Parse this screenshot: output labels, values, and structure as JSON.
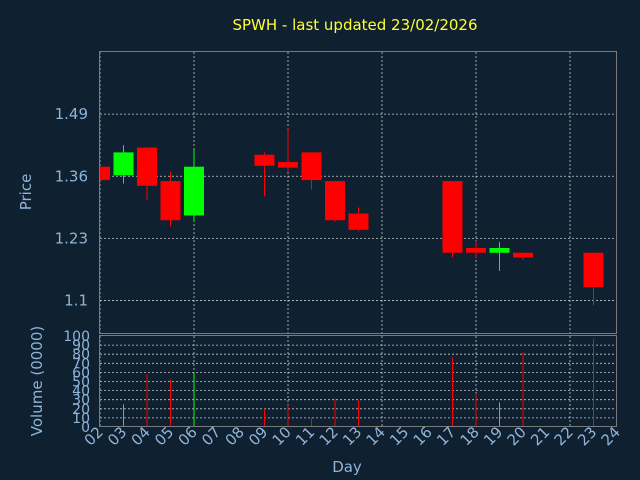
{
  "chart_data": [
    {
      "type": "candlestick",
      "title": "SPWH - last updated 23/02/2026",
      "ylabel": "Price",
      "ytick_values": [
        1.1,
        1.23,
        1.36,
        1.49
      ],
      "ytick_labels": [
        "1.1",
        "1.23",
        "1.36",
        "1.49"
      ],
      "ylim": [
        1.03,
        1.62
      ],
      "x_day_labels": [
        "02",
        "03",
        "04",
        "05",
        "06",
        "07",
        "08",
        "09",
        "10",
        "11",
        "12",
        "13",
        "14",
        "15",
        "16",
        "17",
        "18",
        "19",
        "20",
        "21",
        "22",
        "23",
        "24"
      ],
      "candles": [
        {
          "day": 2,
          "open": 1.38,
          "close": 1.352,
          "high": 1.38,
          "low": 1.352
        },
        {
          "day": 3,
          "open": 1.362,
          "close": 1.41,
          "high": 1.425,
          "low": 1.345
        },
        {
          "day": 4,
          "open": 1.42,
          "close": 1.34,
          "high": 1.42,
          "low": 1.31
        },
        {
          "day": 5,
          "open": 1.35,
          "close": 1.268,
          "high": 1.37,
          "low": 1.255
        },
        {
          "day": 6,
          "open": 1.278,
          "close": 1.38,
          "high": 1.415,
          "low": 1.265
        },
        {
          "day": 9,
          "open": 1.405,
          "close": 1.382,
          "high": 1.41,
          "low": 1.318
        },
        {
          "day": 10,
          "open": 1.39,
          "close": 1.378,
          "high": 1.46,
          "low": 1.37
        },
        {
          "day": 11,
          "open": 1.41,
          "close": 1.352,
          "high": 1.41,
          "low": 1.332
        },
        {
          "day": 12,
          "open": 1.35,
          "close": 1.268,
          "high": 1.35,
          "low": 1.265
        },
        {
          "day": 13,
          "open": 1.282,
          "close": 1.248,
          "high": 1.295,
          "low": 1.245
        },
        {
          "day": 17,
          "open": 1.35,
          "close": 1.2,
          "high": 1.35,
          "low": 1.19
        },
        {
          "day": 18,
          "open": 1.21,
          "close": 1.2,
          "high": 1.225,
          "low": 1.19
        },
        {
          "day": 19,
          "open": 1.2,
          "close": 1.21,
          "high": 1.222,
          "low": 1.162
        },
        {
          "day": 20,
          "open": 1.2,
          "close": 1.19,
          "high": 1.2,
          "low": 1.185
        },
        {
          "day": 23,
          "open": 1.2,
          "close": 1.128,
          "high": 1.2,
          "low": 1.09
        }
      ]
    },
    {
      "type": "bar",
      "ylabel": "Volume (0000)",
      "xlabel": "Day",
      "ylim": [
        0,
        100
      ],
      "ytick_values": [
        0,
        10,
        20,
        30,
        40,
        50,
        60,
        70,
        80,
        90,
        100
      ],
      "ytick_labels": [
        "0",
        "10",
        "20",
        "30",
        "40",
        "50",
        "60",
        "70",
        "80",
        "90",
        "100"
      ],
      "volumes": [
        {
          "day": 3,
          "value": 25,
          "color": "#00ff00"
        },
        {
          "day": 4,
          "value": 58,
          "color": "#ff0000"
        },
        {
          "day": 5,
          "value": 52,
          "color": "#ff0000"
        },
        {
          "day": 6,
          "value": 60,
          "color": "#00ff00"
        },
        {
          "day": 9,
          "value": 20,
          "color": "#ff0000"
        },
        {
          "day": 10,
          "value": 24,
          "color": "#ff0000"
        },
        {
          "day": 11,
          "value": 10,
          "color": "#ff0000"
        },
        {
          "day": 12,
          "value": 31,
          "color": "#ff0000"
        },
        {
          "day": 13,
          "value": 29,
          "color": "#ff0000"
        },
        {
          "day": 17,
          "value": 77,
          "color": "#ff0000"
        },
        {
          "day": 18,
          "value": 37,
          "color": "#ff0000"
        },
        {
          "day": 19,
          "value": 27,
          "color": "#00ff00"
        },
        {
          "day": 20,
          "value": 82,
          "color": "#ff0000"
        },
        {
          "day": 23,
          "value": 97,
          "color": "#ff0000"
        }
      ]
    }
  ],
  "colors": {
    "background": "#0f2030",
    "plot_background": "#0f2030",
    "grid": "#c8c8c8",
    "text": "#8fb4d8",
    "title": "#ffff33",
    "up": "#00ff00",
    "down": "#ff0000"
  }
}
